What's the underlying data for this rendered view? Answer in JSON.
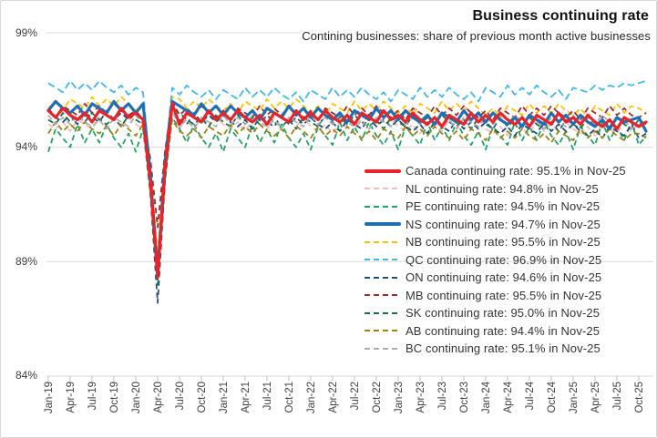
{
  "chart_data": {
    "type": "line",
    "title": "Business continuing rate",
    "subtitle": "Contining businesses: share of previous month active businesses",
    "xlabel": "",
    "ylabel": "",
    "ylim": [
      84,
      99
    ],
    "y_ticks": [
      99,
      94,
      89,
      84
    ],
    "y_tick_labels": [
      "99%",
      "94%",
      "89%",
      "84%"
    ],
    "grid": "horizontal",
    "grid_color": "#D9D9D9",
    "tick_color": "#BFBFBF",
    "axis_text_color": "#404040",
    "legend_position": "center-right",
    "x_tick_every": 3,
    "x": [
      "Jan-19",
      "Feb-19",
      "Mar-19",
      "Apr-19",
      "May-19",
      "Jun-19",
      "Jul-19",
      "Aug-19",
      "Sep-19",
      "Oct-19",
      "Nov-19",
      "Dec-19",
      "Jan-20",
      "Feb-20",
      "Mar-20",
      "Apr-20",
      "May-20",
      "Jun-20",
      "Jul-20",
      "Aug-20",
      "Sep-20",
      "Oct-20",
      "Nov-20",
      "Dec-20",
      "Jan-21",
      "Feb-21",
      "Mar-21",
      "Apr-21",
      "May-21",
      "Jun-21",
      "Jul-21",
      "Aug-21",
      "Sep-21",
      "Oct-21",
      "Nov-21",
      "Dec-21",
      "Jan-22",
      "Feb-22",
      "Mar-22",
      "Apr-22",
      "May-22",
      "Jun-22",
      "Jul-22",
      "Aug-22",
      "Sep-22",
      "Oct-22",
      "Nov-22",
      "Dec-22",
      "Jan-23",
      "Feb-23",
      "Mar-23",
      "Apr-23",
      "May-23",
      "Jun-23",
      "Jul-23",
      "Aug-23",
      "Sep-23",
      "Oct-23",
      "Nov-23",
      "Dec-23",
      "Jan-24",
      "Feb-24",
      "Mar-24",
      "Apr-24",
      "May-24",
      "Jun-24",
      "Jul-24",
      "Aug-24",
      "Sep-24",
      "Oct-24",
      "Nov-24",
      "Dec-24",
      "Jan-25",
      "Feb-25",
      "Mar-25",
      "Apr-25",
      "May-25",
      "Jun-25",
      "Jul-25",
      "Aug-25",
      "Sep-25",
      "Oct-25",
      "Nov-25"
    ],
    "series": [
      {
        "id": "canada",
        "region": "Canada",
        "label": "Canada continuing rate: 95.1% in Nov-25",
        "last_value": "95.1%",
        "last_month": "Nov-25",
        "color": "#E8232A",
        "style": "solid",
        "width": 3.2,
        "values": [
          95.6,
          95.3,
          95.7,
          95.4,
          95.2,
          95.5,
          95.1,
          95.6,
          95.4,
          95.2,
          95.7,
          95.3,
          95.5,
          95.2,
          92.5,
          88.3,
          93.0,
          95.9,
          95.0,
          95.5,
          95.3,
          95.1,
          95.6,
          95.2,
          95.5,
          95.2,
          95.6,
          95.3,
          95.1,
          95.4,
          95.0,
          95.5,
          95.3,
          95.1,
          95.6,
          95.2,
          95.5,
          95.2,
          95.6,
          95.3,
          95.1,
          95.4,
          95.0,
          95.5,
          95.3,
          95.1,
          95.6,
          95.2,
          95.4,
          95.1,
          95.5,
          95.2,
          95.0,
          95.3,
          94.9,
          95.4,
          95.2,
          95.0,
          95.5,
          95.1,
          95.4,
          95.1,
          95.5,
          95.2,
          95.0,
          95.3,
          94.9,
          95.4,
          95.2,
          95.0,
          95.5,
          95.1,
          95.3,
          95.0,
          95.4,
          95.1,
          94.9,
          95.2,
          94.8,
          95.3,
          95.1,
          94.9,
          95.1
        ]
      },
      {
        "id": "nl",
        "region": "NL",
        "label": "NL continuing rate: 94.8% in Nov-25",
        "last_value": "94.8%",
        "last_month": "Nov-25",
        "color": "#F4BCC0",
        "style": "dashed",
        "width": 1.8,
        "dash": "6 4",
        "values": [
          95.0,
          94.8,
          95.1,
          94.7,
          95.2,
          95.0,
          94.8,
          95.3,
          94.9,
          95.2,
          94.9,
          95.3,
          95.0,
          94.8,
          92.8,
          88.6,
          93.2,
          95.7,
          94.8,
          95.3,
          94.9,
          95.2,
          94.9,
          95.3,
          95.0,
          94.8,
          95.1,
          94.7,
          95.2,
          95.0,
          94.8,
          95.3,
          94.9,
          95.2,
          94.9,
          95.3,
          94.9,
          94.7,
          95.0,
          94.6,
          95.1,
          94.9,
          94.7,
          95.2,
          94.8,
          95.1,
          94.8,
          95.2,
          94.9,
          94.7,
          95.0,
          94.6,
          95.1,
          94.9,
          94.7,
          95.2,
          94.8,
          95.1,
          94.8,
          95.2,
          94.8,
          94.6,
          94.9,
          94.5,
          95.0,
          94.8,
          94.6,
          95.1,
          94.7,
          95.0,
          94.7,
          95.1,
          94.8,
          94.6,
          94.9,
          94.5,
          95.0,
          94.8,
          94.6,
          95.1,
          94.7,
          95.0,
          94.8
        ]
      },
      {
        "id": "pe",
        "region": "PE",
        "label": "PE continuing rate: 94.5% in Nov-25",
        "last_value": "94.5%",
        "last_month": "Nov-25",
        "color": "#21A366",
        "style": "dashed",
        "width": 1.8,
        "dash": "6 4",
        "values": [
          93.8,
          94.8,
          94.4,
          94.0,
          95.0,
          94.2,
          94.8,
          94.2,
          95.0,
          94.4,
          94.0,
          94.6,
          93.8,
          94.8,
          92.0,
          88.0,
          92.5,
          95.3,
          94.8,
          94.2,
          95.0,
          94.4,
          94.0,
          94.6,
          93.8,
          94.8,
          94.4,
          94.0,
          95.0,
          94.2,
          94.8,
          94.2,
          95.0,
          94.4,
          94.0,
          94.6,
          93.9,
          94.9,
          94.5,
          94.1,
          95.1,
          94.3,
          94.9,
          94.3,
          95.1,
          94.5,
          94.1,
          94.7,
          93.9,
          94.9,
          94.5,
          94.1,
          95.1,
          94.3,
          94.9,
          94.3,
          95.1,
          94.5,
          94.1,
          94.7,
          93.9,
          94.9,
          94.5,
          94.1,
          95.1,
          94.3,
          94.9,
          94.3,
          95.1,
          94.5,
          94.1,
          94.7,
          93.9,
          94.9,
          94.5,
          94.1,
          95.1,
          94.3,
          94.9,
          94.3,
          95.1,
          94.1,
          94.5
        ]
      },
      {
        "id": "ns",
        "region": "NS",
        "label": "NS continuing rate: 94.7% in Nov-25",
        "last_value": "94.7%",
        "last_month": "Nov-25",
        "color": "#1F6FB4",
        "style": "solid",
        "width": 3.2,
        "values": [
          95.6,
          96.0,
          95.7,
          95.5,
          95.8,
          95.4,
          95.9,
          95.7,
          95.5,
          96.0,
          95.6,
          95.9,
          95.5,
          95.9,
          92.8,
          88.5,
          93.3,
          96.0,
          95.8,
          95.6,
          95.4,
          95.9,
          95.5,
          95.8,
          95.4,
          95.8,
          95.5,
          95.3,
          95.6,
          95.2,
          95.7,
          95.5,
          95.3,
          95.8,
          95.4,
          95.7,
          95.3,
          95.7,
          95.4,
          95.2,
          95.5,
          95.1,
          95.6,
          95.4,
          95.2,
          95.7,
          95.3,
          95.6,
          95.2,
          95.6,
          95.3,
          95.1,
          95.4,
          95.0,
          95.5,
          95.3,
          95.1,
          95.6,
          95.2,
          95.5,
          95.1,
          95.5,
          95.2,
          95.0,
          95.3,
          94.9,
          95.4,
          95.2,
          95.0,
          95.5,
          95.1,
          95.4,
          95.0,
          95.4,
          95.1,
          94.9,
          95.2,
          94.8,
          95.3,
          95.1,
          95.2,
          95.3,
          94.7
        ]
      },
      {
        "id": "nb",
        "region": "NB",
        "label": "NB continuing rate: 95.5% in Nov-25",
        "last_value": "95.5%",
        "last_month": "Nov-25",
        "color": "#FFC000",
        "style": "dashed",
        "width": 1.8,
        "dash": "6 4",
        "values": [
          95.7,
          96.0,
          95.6,
          96.1,
          95.9,
          95.7,
          96.2,
          95.8,
          96.1,
          95.8,
          96.2,
          95.9,
          95.6,
          95.9,
          93.3,
          89.3,
          93.8,
          96.2,
          96.1,
          95.7,
          96.0,
          95.7,
          96.1,
          95.8,
          95.6,
          95.9,
          95.5,
          96.0,
          95.8,
          95.6,
          96.1,
          95.7,
          96.0,
          95.7,
          96.1,
          95.8,
          95.5,
          95.8,
          95.4,
          95.9,
          95.7,
          95.5,
          96.0,
          95.6,
          95.9,
          95.6,
          96.0,
          95.7,
          95.5,
          95.8,
          95.4,
          95.9,
          95.7,
          95.5,
          96.0,
          95.6,
          95.9,
          95.6,
          96.0,
          95.7,
          95.4,
          95.7,
          95.3,
          95.8,
          95.6,
          95.4,
          95.9,
          95.5,
          95.8,
          95.5,
          95.9,
          95.6,
          95.4,
          95.7,
          95.3,
          95.8,
          95.6,
          95.4,
          95.9,
          95.5,
          95.8,
          95.7,
          95.5
        ]
      },
      {
        "id": "qc",
        "region": "QC",
        "label": "QC continuing rate: 96.9% in Nov-25",
        "last_value": "96.9%",
        "last_month": "Nov-25",
        "color": "#41B8EA",
        "style": "dashed",
        "width": 1.8,
        "dash": "8 4",
        "values": [
          96.8,
          96.6,
          96.4,
          96.9,
          96.5,
          96.8,
          96.5,
          96.9,
          96.6,
          96.4,
          96.7,
          96.3,
          96.6,
          96.4,
          92.9,
          88.6,
          93.5,
          96.6,
          96.3,
          96.7,
          96.4,
          96.2,
          96.5,
          96.1,
          96.5,
          96.3,
          96.1,
          96.6,
          96.2,
          96.5,
          96.2,
          96.6,
          96.3,
          96.1,
          96.4,
          96.0,
          96.5,
          96.3,
          96.1,
          96.6,
          96.2,
          96.5,
          96.2,
          96.6,
          96.3,
          96.1,
          96.4,
          96.0,
          96.5,
          96.3,
          96.1,
          96.6,
          96.2,
          96.5,
          96.2,
          96.6,
          96.3,
          96.1,
          96.4,
          96.0,
          96.6,
          96.4,
          96.2,
          96.7,
          96.3,
          96.6,
          96.3,
          96.7,
          96.4,
          96.2,
          96.5,
          96.1,
          96.6,
          96.5,
          96.4,
          96.7,
          96.5,
          96.7,
          96.6,
          96.8,
          96.7,
          96.8,
          96.9
        ]
      },
      {
        "id": "on",
        "region": "ON",
        "label": "ON continuing rate: 94.6% in Nov-25",
        "last_value": "94.6%",
        "last_month": "Nov-25",
        "color": "#1F4E79",
        "style": "dashed",
        "width": 1.8,
        "dash": "6 4",
        "values": [
          95.6,
          95.3,
          95.1,
          95.4,
          95.0,
          95.5,
          95.3,
          95.1,
          95.6,
          95.2,
          95.5,
          95.2,
          95.5,
          95.2,
          92.0,
          87.2,
          92.5,
          95.7,
          95.2,
          95.0,
          95.5,
          95.1,
          95.4,
          95.1,
          95.4,
          95.1,
          94.9,
          95.2,
          94.8,
          95.3,
          95.1,
          94.9,
          95.4,
          95.0,
          95.3,
          95.0,
          95.3,
          95.0,
          94.8,
          95.1,
          94.7,
          95.2,
          95.0,
          94.8,
          95.3,
          94.9,
          95.2,
          94.9,
          95.2,
          94.9,
          94.7,
          95.0,
          94.6,
          95.1,
          94.9,
          94.7,
          95.2,
          94.8,
          95.1,
          94.8,
          95.1,
          94.8,
          94.6,
          94.9,
          94.5,
          95.0,
          94.8,
          94.6,
          95.1,
          94.7,
          95.0,
          94.7,
          95.0,
          94.7,
          94.5,
          94.8,
          94.4,
          94.9,
          94.7,
          94.5,
          95.0,
          94.4,
          94.6
        ]
      },
      {
        "id": "mb",
        "region": "MB",
        "label": "MB continuing rate: 95.5% in Nov-25",
        "last_value": "95.5%",
        "last_month": "Nov-25",
        "color": "#9E2B2E",
        "style": "dashed",
        "width": 1.8,
        "dash": "6 4",
        "values": [
          95.7,
          95.3,
          95.8,
          95.6,
          95.4,
          95.9,
          95.5,
          95.8,
          95.5,
          95.9,
          95.6,
          95.4,
          95.6,
          95.2,
          93.5,
          90.5,
          93.8,
          96.0,
          95.4,
          95.7,
          95.4,
          95.8,
          95.5,
          95.3,
          95.6,
          95.2,
          95.7,
          95.5,
          95.3,
          95.8,
          95.4,
          95.7,
          95.4,
          95.8,
          95.5,
          95.3,
          95.6,
          95.2,
          95.7,
          95.5,
          95.3,
          95.8,
          95.4,
          95.7,
          95.4,
          95.8,
          95.5,
          95.3,
          95.6,
          95.2,
          95.7,
          95.5,
          95.3,
          95.8,
          95.4,
          95.7,
          95.4,
          95.8,
          95.5,
          95.3,
          95.6,
          95.2,
          95.7,
          95.5,
          95.3,
          95.8,
          95.4,
          95.7,
          95.4,
          95.8,
          95.5,
          95.3,
          95.6,
          95.2,
          95.7,
          95.5,
          95.3,
          95.8,
          95.4,
          95.7,
          95.4,
          95.3,
          95.5
        ]
      },
      {
        "id": "sk",
        "region": "SK",
        "label": "SK continuing rate: 95.0% in Nov-25",
        "last_value": "95.0%",
        "last_month": "Nov-25",
        "color": "#1B6E53",
        "style": "dashed",
        "width": 1.8,
        "dash": "6 4",
        "values": [
          95.2,
          95.0,
          95.5,
          95.1,
          95.4,
          95.1,
          95.5,
          95.2,
          95.0,
          95.3,
          94.9,
          95.4,
          95.2,
          95.0,
          92.6,
          88.2,
          93.0,
          95.6,
          95.5,
          95.2,
          95.0,
          95.3,
          94.9,
          95.4,
          95.1,
          94.9,
          95.4,
          95.0,
          95.3,
          95.0,
          95.4,
          95.1,
          94.9,
          95.2,
          94.8,
          95.3,
          95.1,
          94.9,
          95.4,
          95.0,
          95.3,
          95.0,
          95.4,
          95.1,
          94.9,
          95.2,
          94.8,
          95.3,
          95.1,
          94.9,
          95.4,
          95.0,
          95.3,
          95.0,
          95.4,
          95.1,
          94.9,
          95.2,
          94.8,
          95.3,
          95.0,
          94.8,
          95.3,
          94.9,
          95.2,
          94.9,
          95.3,
          95.0,
          94.8,
          95.1,
          94.7,
          95.2,
          95.0,
          94.8,
          95.3,
          94.9,
          95.2,
          94.9,
          95.3,
          95.0,
          94.8,
          95.2,
          95.0
        ]
      },
      {
        "id": "ab",
        "region": "AB",
        "label": "AB continuing rate: 94.4% in Nov-25",
        "last_value": "94.4%",
        "last_month": "Nov-25",
        "color": "#9C8412",
        "style": "dashed",
        "width": 1.8,
        "dash": "6 4",
        "values": [
          94.6,
          95.1,
          94.7,
          95.0,
          94.7,
          95.1,
          94.8,
          94.6,
          94.9,
          94.5,
          95.0,
          94.8,
          94.5,
          95.0,
          92.3,
          88.4,
          92.8,
          95.2,
          94.7,
          94.5,
          94.8,
          94.4,
          94.9,
          94.7,
          94.5,
          95.0,
          94.6,
          94.9,
          94.6,
          95.0,
          94.7,
          94.5,
          94.8,
          94.4,
          94.9,
          94.7,
          94.4,
          94.9,
          94.5,
          94.8,
          94.5,
          94.9,
          94.6,
          94.4,
          94.7,
          94.3,
          94.8,
          94.6,
          94.4,
          94.9,
          94.5,
          94.8,
          94.5,
          94.9,
          94.6,
          94.4,
          94.7,
          94.3,
          94.8,
          94.6,
          94.3,
          94.8,
          94.4,
          94.7,
          94.4,
          94.8,
          94.5,
          94.3,
          94.6,
          94.2,
          94.7,
          94.5,
          94.3,
          94.8,
          94.4,
          94.7,
          94.4,
          94.8,
          94.5,
          94.3,
          94.6,
          94.6,
          94.4
        ]
      },
      {
        "id": "bc",
        "region": "BC",
        "label": "BC continuing rate: 95.1% in Nov-25",
        "last_value": "95.1%",
        "last_month": "Nov-25",
        "color": "#ADADAD",
        "style": "dashed",
        "width": 1.8,
        "dash": "6 4",
        "values": [
          95.4,
          95.0,
          95.3,
          95.0,
          95.4,
          95.1,
          94.9,
          95.2,
          94.8,
          95.3,
          95.1,
          94.9,
          95.4,
          95.0,
          92.4,
          88.3,
          93.0,
          95.6,
          94.9,
          95.2,
          94.8,
          95.3,
          95.1,
          94.9,
          95.4,
          95.0,
          95.3,
          95.0,
          95.4,
          95.1,
          94.9,
          95.2,
          94.8,
          95.3,
          95.1,
          94.9,
          95.4,
          95.0,
          95.3,
          95.0,
          95.4,
          95.1,
          94.9,
          95.2,
          94.8,
          95.3,
          95.1,
          94.9,
          95.4,
          95.0,
          95.3,
          95.0,
          95.4,
          95.1,
          94.9,
          95.2,
          94.8,
          95.3,
          95.1,
          94.9,
          95.4,
          95.0,
          95.3,
          95.0,
          95.4,
          95.1,
          94.9,
          95.2,
          94.8,
          95.3,
          95.1,
          94.9,
          95.4,
          95.0,
          95.3,
          95.0,
          95.4,
          95.1,
          94.9,
          95.2,
          94.8,
          95.0,
          95.1
        ]
      }
    ]
  }
}
